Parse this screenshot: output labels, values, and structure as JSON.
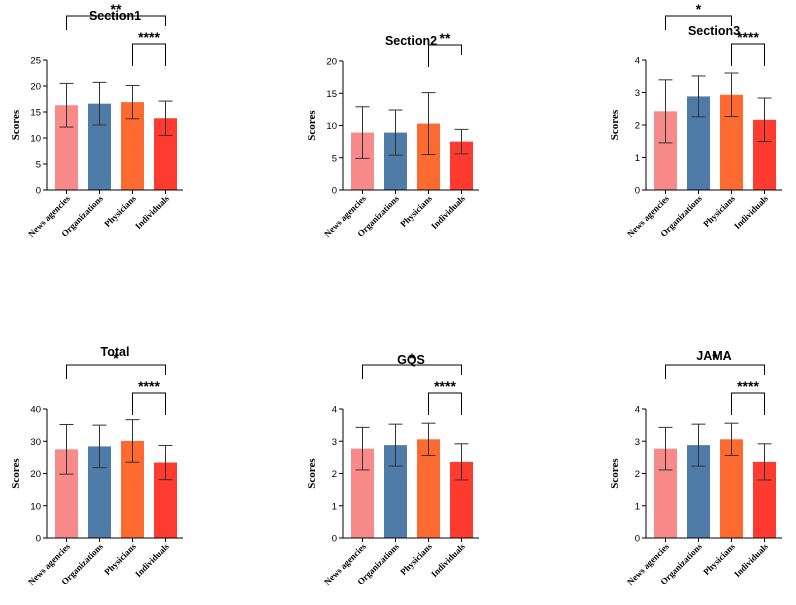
{
  "chart_data": [
    {
      "type": "bar",
      "title": "Section1",
      "ylabel": "Scores",
      "xlabel": "",
      "ylim": [
        0,
        25
      ],
      "yticks": [
        0,
        5,
        10,
        15,
        20,
        25
      ],
      "categories": [
        "News agencies",
        "Organizations",
        "Physicians",
        "Individuals"
      ],
      "values": [
        16.3,
        16.6,
        16.9,
        13.8
      ],
      "errors": [
        4.2,
        4.1,
        3.2,
        3.3
      ],
      "significance": [
        {
          "from": 0,
          "to": 3,
          "label": "**"
        },
        {
          "from": 2,
          "to": 3,
          "label": "****"
        }
      ]
    },
    {
      "type": "bar",
      "title": "Section2",
      "ylabel": "Scores",
      "xlabel": "",
      "ylim": [
        0,
        20
      ],
      "yticks": [
        0,
        5,
        10,
        15,
        20
      ],
      "categories": [
        "News agencies",
        "Organizations",
        "Physicians",
        "Individuals"
      ],
      "values": [
        8.9,
        8.9,
        10.3,
        7.5
      ],
      "errors": [
        4.0,
        3.5,
        4.8,
        1.9
      ],
      "significance": [
        {
          "from": 2,
          "to": 3,
          "label": "**"
        }
      ]
    },
    {
      "type": "bar",
      "title": "Section3",
      "ylabel": "Scores",
      "xlabel": "",
      "ylim": [
        0,
        4
      ],
      "yticks": [
        0,
        1,
        2,
        3,
        4
      ],
      "categories": [
        "News agencies",
        "Organizations",
        "Physicians",
        "Individuals"
      ],
      "values": [
        2.42,
        2.88,
        2.93,
        2.16
      ],
      "errors": [
        0.97,
        0.63,
        0.67,
        0.67
      ],
      "significance": [
        {
          "from": 0,
          "to": 2,
          "label": "*"
        },
        {
          "from": 2,
          "to": 3,
          "label": "****"
        }
      ]
    },
    {
      "type": "bar",
      "title": "Total",
      "ylabel": "Scores",
      "xlabel": "",
      "ylim": [
        0,
        40
      ],
      "yticks": [
        0,
        10,
        20,
        30,
        40
      ],
      "categories": [
        "News agencies",
        "Organizations",
        "Physicians",
        "Individuals"
      ],
      "values": [
        27.5,
        28.4,
        30.1,
        23.4
      ],
      "errors": [
        7.7,
        6.6,
        6.6,
        5.3
      ],
      "significance": [
        {
          "from": 0,
          "to": 3,
          "label": "*"
        },
        {
          "from": 2,
          "to": 3,
          "label": "****"
        }
      ]
    },
    {
      "type": "bar",
      "title": "GQS",
      "ylabel": "Scores",
      "xlabel": "",
      "ylim": [
        0,
        4
      ],
      "yticks": [
        0,
        1,
        2,
        3,
        4
      ],
      "categories": [
        "News agencies",
        "Organizations",
        "Physicians",
        "Individuals"
      ],
      "values": [
        2.77,
        2.88,
        3.06,
        2.36
      ],
      "errors": [
        0.66,
        0.65,
        0.5,
        0.56
      ],
      "significance": [
        {
          "from": 0,
          "to": 3,
          "label": "*"
        },
        {
          "from": 2,
          "to": 3,
          "label": "****"
        }
      ]
    },
    {
      "type": "bar",
      "title": "JAMA",
      "ylabel": "Scores",
      "xlabel": "",
      "ylim": [
        0,
        4
      ],
      "yticks": [
        0,
        1,
        2,
        3,
        4
      ],
      "categories": [
        "News agencies",
        "Organizations",
        "Physicians",
        "Individuals"
      ],
      "values": [
        2.77,
        2.88,
        3.06,
        2.36
      ],
      "errors": [
        0.66,
        0.65,
        0.5,
        0.56
      ],
      "significance": [
        {
          "from": 0,
          "to": 3,
          "label": "*"
        },
        {
          "from": 2,
          "to": 3,
          "label": "****"
        }
      ]
    }
  ],
  "colors": {
    "bar_fills": [
      "#f88a89",
      "#4f7ba8",
      "#ff6a30",
      "#ff3b2f"
    ],
    "axis": "#000000",
    "error_bar": "#333333"
  }
}
